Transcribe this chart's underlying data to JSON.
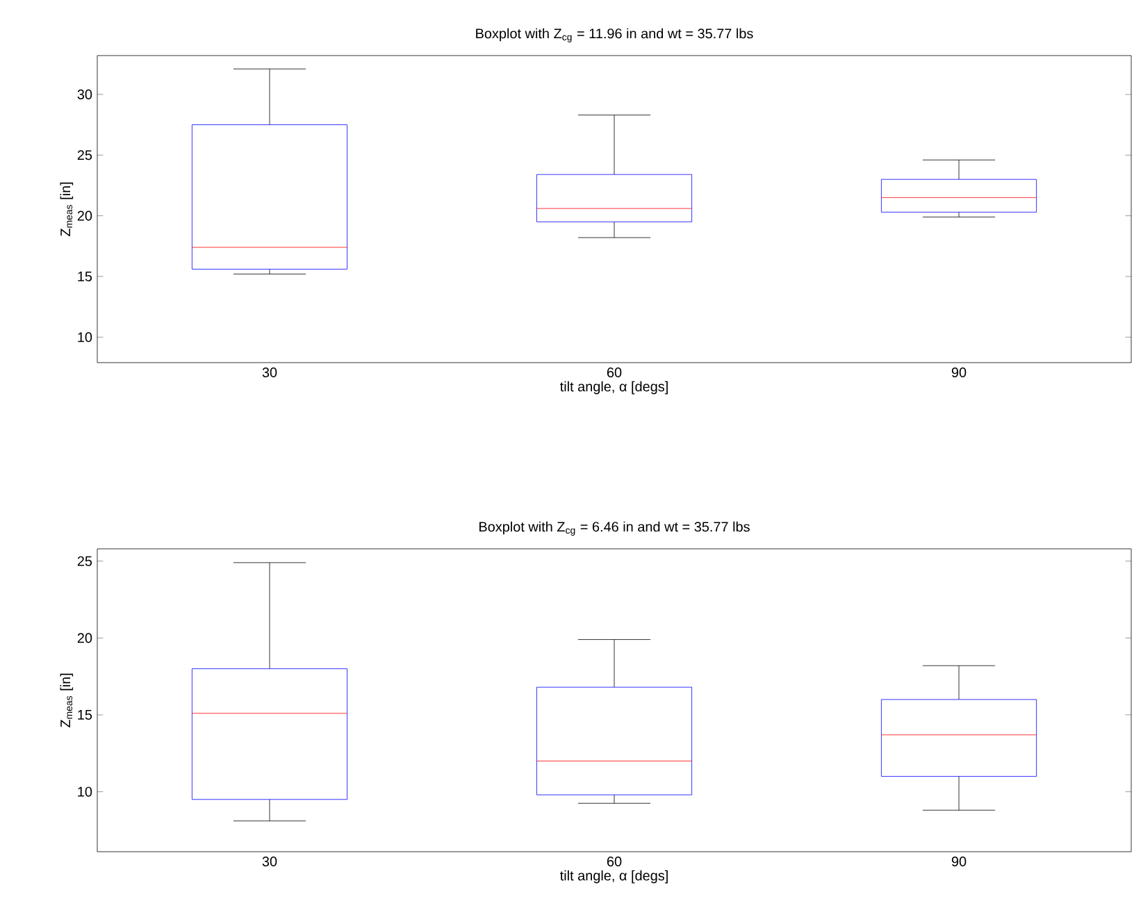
{
  "chart_data": [
    {
      "type": "box",
      "title": "Boxplot with Z$_{cg}$ = 11.96 in  and  wt = 35.77 lbs",
      "xlabel": "tilt angle, α [degs]",
      "ylabel": "Z$_{meas}$ [in]",
      "categories": [
        "30",
        "60",
        "90"
      ],
      "ylim": [
        7.9,
        33.2
      ],
      "yticks": [
        10,
        15,
        20,
        25,
        30
      ],
      "color": "#0000ff",
      "boxes": [
        {
          "low": 15.2,
          "q1": 15.6,
          "median": 17.4,
          "q3": 27.5,
          "high": 32.1
        },
        {
          "low": 18.2,
          "q1": 19.5,
          "median": 20.6,
          "q3": 23.4,
          "high": 28.3
        },
        {
          "low": 19.9,
          "q1": 20.3,
          "median": 21.5,
          "q3": 23.0,
          "high": 24.6
        }
      ]
    },
    {
      "type": "box",
      "title": "Boxplot with Z$_{cg}$ = 6.46 in  and  wt = 35.77 lbs",
      "xlabel": "tilt angle, α [degs]",
      "ylabel": "Z$_{meas}$ [in]",
      "categories": [
        "30",
        "60",
        "90"
      ],
      "ylim": [
        6.1,
        25.8
      ],
      "yticks": [
        10,
        15,
        20,
        25
      ],
      "color": "#0000ff",
      "boxes": [
        {
          "low": 8.1,
          "q1": 9.5,
          "median": 15.1,
          "q3": 18.0,
          "high": 24.9
        },
        {
          "low": 9.25,
          "q1": 9.8,
          "median": 12.0,
          "q3": 16.8,
          "high": 19.9
        },
        {
          "low": 8.8,
          "q1": 11.0,
          "median": 13.7,
          "q3": 16.0,
          "high": 18.2
        }
      ]
    }
  ]
}
